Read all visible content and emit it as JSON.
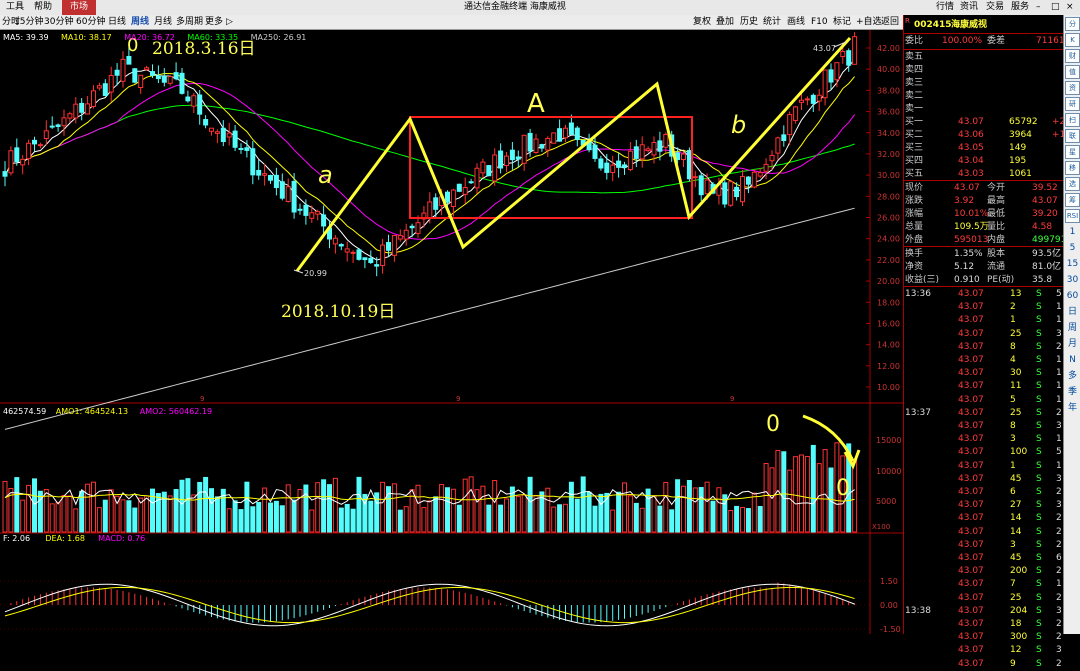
{
  "menubar": {
    "left": [
      "工具",
      "帮助",
      "市场"
    ],
    "title": "通达信金融终端  海康威视",
    "right": [
      "行情",
      "资讯",
      "交易",
      "服务"
    ],
    "right_glyphs": [
      "–",
      "□",
      "×"
    ]
  },
  "toolbar": {
    "periods": [
      "分时",
      "15分钟",
      "30分钟",
      "60分钟",
      "日线",
      "周线",
      "月线",
      "多周期",
      "更多"
    ],
    "active_period": "周线",
    "more_arrow": "▷",
    "tools": [
      "复权",
      "叠加",
      "历史",
      "统计",
      "画线",
      "F10",
      "标记",
      "+自选",
      "返回"
    ]
  },
  "chart_info": {
    "ma_line": [
      {
        "text": "MA5: 39.39",
        "color": "#ffffff"
      },
      {
        "text": "MA10: 38.17",
        "color": "#ffff00"
      },
      {
        "text": "MA20: 36.72",
        "color": "#ff00ff"
      },
      {
        "text": "MA60: 33.35",
        "color": "#00ff00"
      },
      {
        "text": "MA250: 26.91",
        "color": "#cccccc"
      }
    ],
    "vol_line": [
      {
        "text": "462574.59",
        "color": "#ffffff"
      },
      {
        "text": "AMO1: 464524.13",
        "color": "#ffff00"
      },
      {
        "text": "AMO2: 560462.19",
        "color": "#ff00ff"
      }
    ],
    "macd_line": [
      {
        "text": "F: 2.06",
        "color": "#ffffff"
      },
      {
        "text": "DEA: 1.68",
        "color": "#ffff00"
      },
      {
        "text": "MACD: 0.76",
        "color": "#ff00ff"
      }
    ],
    "price_axis": [
      "42.00",
      "40.00",
      "38.00",
      "36.00",
      "34.00",
      "32.00",
      "30.00",
      "28.00",
      "26.00",
      "24.00",
      "22.00",
      "20.00",
      "18.00",
      "16.00",
      "14.00",
      "12.00",
      "10.00"
    ],
    "vol_axis": [
      "15000",
      "10000",
      "5000"
    ],
    "vol_unit": "X100",
    "macd_axis": [
      "1.50",
      "0.00",
      "-1.50"
    ],
    "high_label": "43.07",
    "low_label": "20.99",
    "year_marks": [
      "9",
      "9",
      "9"
    ]
  },
  "annotations": {
    "date_top": "2018.3.16日",
    "date_bottom": "2018.10.19日",
    "letter_a_small": "a",
    "letter_A": "A",
    "letter_b": "b",
    "circle_top": "0",
    "circle_vol": "0",
    "circle_vol2": "0"
  },
  "panel": {
    "code": "002415",
    "name": "海康威视",
    "r_mark": "R",
    "ratio_label": "委比",
    "ratio_value": "100.00%",
    "diff_label": "委差",
    "diff_value": "71161",
    "asks": [
      {
        "label": "卖五",
        "price": "",
        "vol": "",
        "chg": ""
      },
      {
        "label": "卖四",
        "price": "",
        "vol": "",
        "chg": ""
      },
      {
        "label": "卖三",
        "price": "",
        "vol": "",
        "chg": ""
      },
      {
        "label": "卖二",
        "price": "",
        "vol": "",
        "chg": ""
      },
      {
        "label": "卖一",
        "price": "",
        "vol": "",
        "chg": ""
      }
    ],
    "bids": [
      {
        "label": "买一",
        "price": "43.07",
        "vol": "65792",
        "chg": "+24"
      },
      {
        "label": "买二",
        "price": "43.06",
        "vol": "3964",
        "chg": "+1"
      },
      {
        "label": "买三",
        "price": "43.05",
        "vol": "149",
        "chg": ""
      },
      {
        "label": "买四",
        "price": "43.04",
        "vol": "195",
        "chg": ""
      },
      {
        "label": "买五",
        "price": "43.03",
        "vol": "1061",
        "chg": ""
      }
    ],
    "stats": [
      {
        "l1": "现价",
        "v1": "43.07",
        "c1": "red",
        "l2": "今开",
        "v2": "39.52",
        "c2": "red"
      },
      {
        "l1": "涨跌",
        "v1": "3.92",
        "c1": "red",
        "l2": "最高",
        "v2": "43.07",
        "c2": "red"
      },
      {
        "l1": "涨幅",
        "v1": "10.01%",
        "c1": "red",
        "l2": "最低",
        "v2": "39.20",
        "c2": "red"
      },
      {
        "l1": "总量",
        "v1": "109.5万",
        "c1": "yel",
        "l2": "量比",
        "v2": "4.58",
        "c2": "red"
      },
      {
        "l1": "外盘",
        "v1": "595013",
        "c1": "red",
        "l2": "内盘",
        "v2": "499791",
        "c2": "grn"
      }
    ],
    "stats2": [
      {
        "l1": "换手",
        "v1": "1.35%",
        "l2": "股本",
        "v2": "93.5亿"
      },
      {
        "l1": "净资",
        "v1": "5.12",
        "l2": "流通",
        "v2": "81.0亿"
      },
      {
        "l1": "收益(三)",
        "v1": "0.910",
        "l2": "PE(动)",
        "v2": "35.8"
      }
    ],
    "ticks": [
      {
        "time": "13:36",
        "price": "43.07",
        "vol": "13",
        "bs": "S",
        "n": "5"
      },
      {
        "time": "",
        "price": "43.07",
        "vol": "2",
        "bs": "S",
        "n": "1"
      },
      {
        "time": "",
        "price": "43.07",
        "vol": "1",
        "bs": "S",
        "n": "1"
      },
      {
        "time": "",
        "price": "43.07",
        "vol": "25",
        "bs": "S",
        "n": "3"
      },
      {
        "time": "",
        "price": "43.07",
        "vol": "8",
        "bs": "S",
        "n": "2"
      },
      {
        "time": "",
        "price": "43.07",
        "vol": "4",
        "bs": "S",
        "n": "1"
      },
      {
        "time": "",
        "price": "43.07",
        "vol": "30",
        "bs": "S",
        "n": "1"
      },
      {
        "time": "",
        "price": "43.07",
        "vol": "11",
        "bs": "S",
        "n": "1"
      },
      {
        "time": "",
        "price": "43.07",
        "vol": "5",
        "bs": "S",
        "n": "1"
      },
      {
        "time": "13:37",
        "price": "43.07",
        "vol": "25",
        "bs": "S",
        "n": "2"
      },
      {
        "time": "",
        "price": "43.07",
        "vol": "8",
        "bs": "S",
        "n": "3"
      },
      {
        "time": "",
        "price": "43.07",
        "vol": "3",
        "bs": "S",
        "n": "1"
      },
      {
        "time": "",
        "price": "43.07",
        "vol": "100",
        "bs": "S",
        "n": "5"
      },
      {
        "time": "",
        "price": "43.07",
        "vol": "1",
        "bs": "S",
        "n": "1"
      },
      {
        "time": "",
        "price": "43.07",
        "vol": "45",
        "bs": "S",
        "n": "3"
      },
      {
        "time": "",
        "price": "43.07",
        "vol": "6",
        "bs": "S",
        "n": "2"
      },
      {
        "time": "",
        "price": "43.07",
        "vol": "27",
        "bs": "S",
        "n": "3"
      },
      {
        "time": "",
        "price": "43.07",
        "vol": "14",
        "bs": "S",
        "n": "2"
      },
      {
        "time": "",
        "price": "43.07",
        "vol": "14",
        "bs": "S",
        "n": "2"
      },
      {
        "time": "",
        "price": "43.07",
        "vol": "3",
        "bs": "S",
        "n": "2"
      },
      {
        "time": "",
        "price": "43.07",
        "vol": "45",
        "bs": "S",
        "n": "6"
      },
      {
        "time": "",
        "price": "43.07",
        "vol": "200",
        "bs": "S",
        "n": "2"
      },
      {
        "time": "",
        "price": "43.07",
        "vol": "7",
        "bs": "S",
        "n": "1"
      },
      {
        "time": "",
        "price": "43.07",
        "vol": "25",
        "bs": "S",
        "n": "2"
      },
      {
        "time": "13:38",
        "price": "43.07",
        "vol": "204",
        "bs": "S",
        "n": "3"
      },
      {
        "time": "",
        "price": "43.07",
        "vol": "18",
        "bs": "S",
        "n": "2"
      },
      {
        "time": "",
        "price": "43.07",
        "vol": "300",
        "bs": "S",
        "n": "2"
      },
      {
        "time": "",
        "price": "43.07",
        "vol": "12",
        "bs": "S",
        "n": "3"
      },
      {
        "time": "",
        "price": "43.07",
        "vol": "9",
        "bs": "S",
        "n": "2"
      }
    ]
  },
  "sidebar": {
    "icons": [
      "分",
      "K",
      "财",
      "值",
      "资",
      "研",
      "扫",
      "联",
      "星",
      "移",
      "选",
      "筹",
      "RSI",
      "1",
      "5",
      "15",
      "30",
      "60",
      "日",
      "周",
      "月",
      "N",
      "多",
      "季",
      "年"
    ]
  }
}
